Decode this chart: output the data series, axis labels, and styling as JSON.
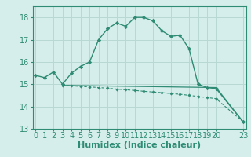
{
  "line1_x": [
    0,
    1,
    2,
    3,
    4,
    5,
    6,
    7,
    8,
    9,
    10,
    11,
    12,
    13,
    14,
    15,
    16,
    17,
    18,
    19,
    20,
    23
  ],
  "line1_y": [
    15.4,
    15.3,
    15.55,
    15.0,
    15.5,
    15.8,
    16.0,
    17.0,
    17.5,
    17.75,
    17.6,
    18.0,
    18.0,
    17.85,
    17.4,
    17.15,
    17.2,
    16.6,
    15.0,
    14.85,
    14.8,
    13.3
  ],
  "line2_x": [
    3,
    4,
    5,
    6,
    7,
    8,
    9,
    10,
    11,
    12,
    13,
    14,
    15,
    16,
    17,
    18,
    19,
    20,
    23
  ],
  "line2_y": [
    14.95,
    14.93,
    14.9,
    14.88,
    14.85,
    14.82,
    14.78,
    14.75,
    14.72,
    14.68,
    14.65,
    14.62,
    14.58,
    14.55,
    14.5,
    14.45,
    14.4,
    14.35,
    13.3
  ],
  "line3_x": [
    3,
    20,
    23
  ],
  "line3_y": [
    14.95,
    14.85,
    13.3
  ],
  "color": "#2e8b74",
  "bg_color": "#d6eeeb",
  "grid_color": "#b8d8d4",
  "xlabel": "Humidex (Indice chaleur)",
  "ylim": [
    13,
    18.5
  ],
  "xlim": [
    -0.3,
    23.3
  ],
  "yticks": [
    13,
    14,
    15,
    16,
    17,
    18
  ],
  "xticks": [
    0,
    1,
    2,
    3,
    4,
    5,
    6,
    7,
    8,
    9,
    10,
    11,
    12,
    13,
    14,
    15,
    16,
    17,
    18,
    19,
    20,
    23
  ],
  "xlabel_fontsize": 8,
  "tick_fontsize": 7
}
